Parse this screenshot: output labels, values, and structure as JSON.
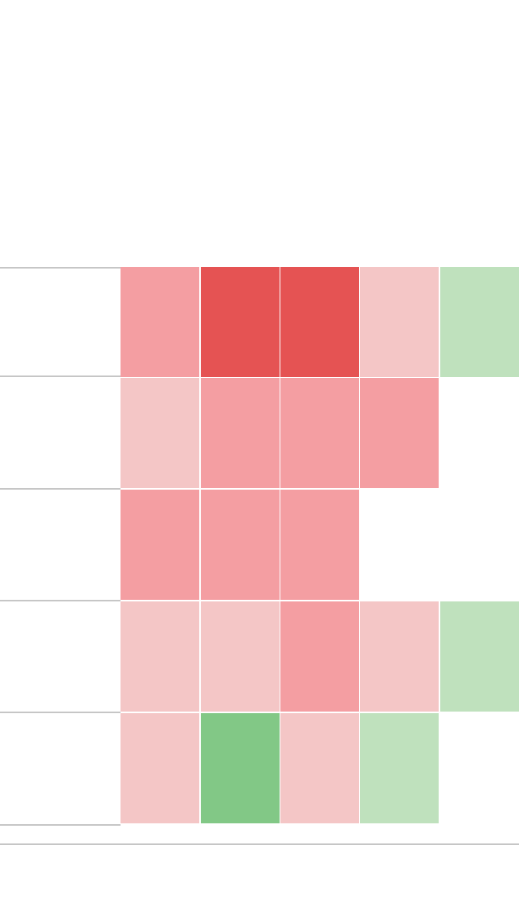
{
  "chart_data": {
    "type": "heatmap",
    "rows": 5,
    "columns": 5,
    "color_levels": {
      "strong_negative": "#e55353",
      "negative": "#f49ea2",
      "light_negative": "#f4c6c6",
      "light_positive": "#bfe1bd",
      "positive": "#82c886"
    },
    "cells": [
      [
        "negative",
        "strong_negative",
        "strong_negative",
        "light_negative",
        "light_positive"
      ],
      [
        "light_negative",
        "negative",
        "negative",
        "negative",
        null
      ],
      [
        "negative",
        "negative",
        "negative",
        null,
        null
      ],
      [
        "light_negative",
        "light_negative",
        "negative",
        "light_negative",
        "light_positive"
      ],
      [
        "light_negative",
        "positive",
        "light_negative",
        "light_positive",
        null
      ]
    ],
    "grid": true
  }
}
